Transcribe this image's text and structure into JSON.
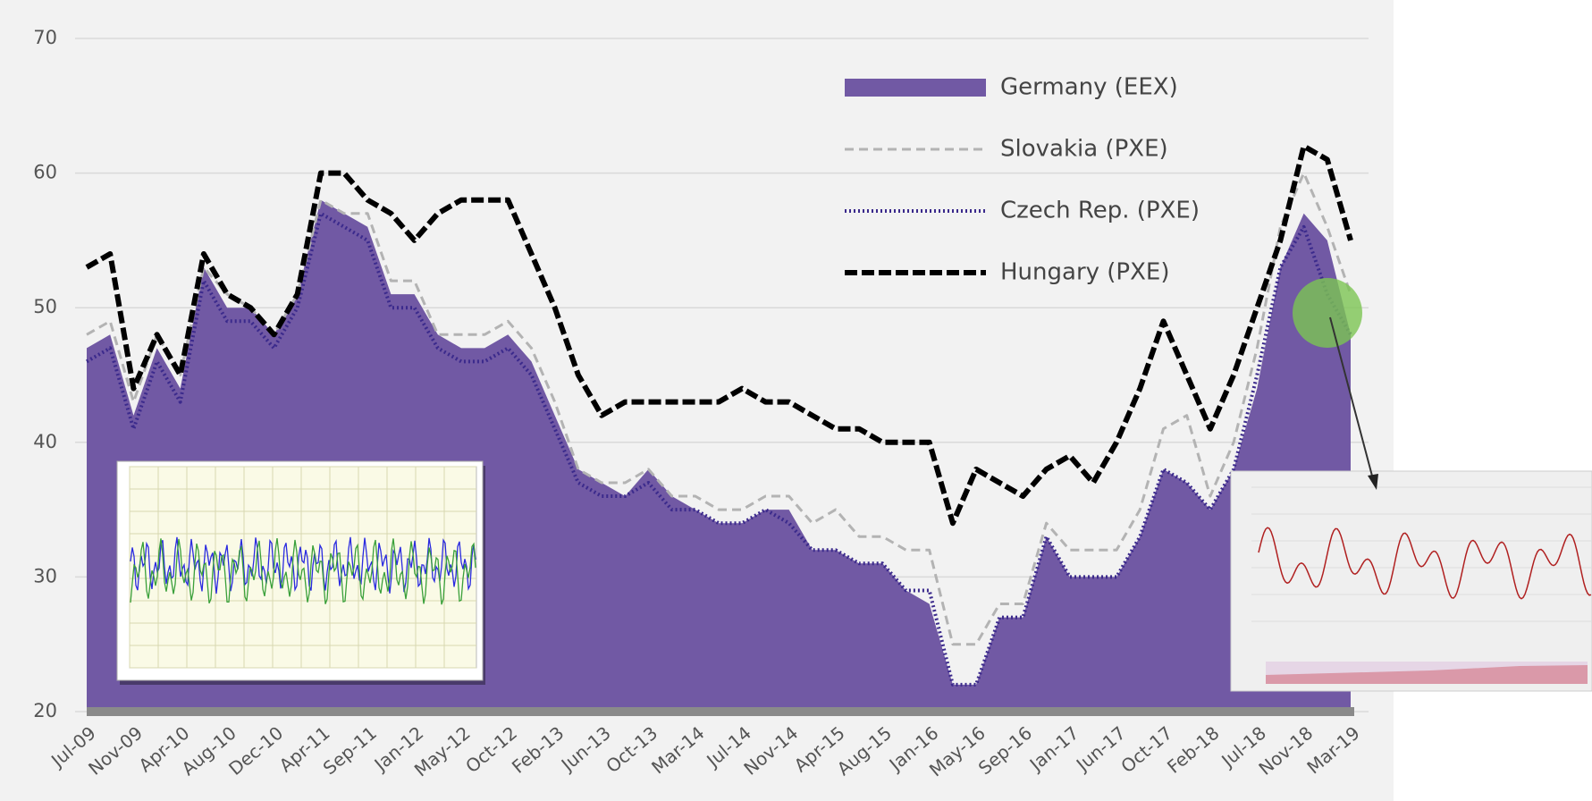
{
  "chart_data": {
    "type": "area-line",
    "categories": [
      "Jul-09",
      null,
      "Nov-09",
      null,
      "Apr-10",
      null,
      "Aug-10",
      null,
      "Dec-10",
      null,
      "Apr-11",
      null,
      "Sep-11",
      null,
      "Jan-12",
      null,
      "May-12",
      null,
      "Oct-12",
      null,
      "Feb-13",
      null,
      "Jun-13",
      null,
      "Oct-13",
      null,
      "Mar-14",
      null,
      "Jul-14",
      null,
      "Nov-14",
      null,
      "Apr-15",
      null,
      "Aug-15",
      null,
      "Jan-16",
      null,
      "May-16",
      null,
      "Sep-16",
      null,
      "Jan-17",
      null,
      "Jun-17",
      null,
      "Oct-17",
      null,
      "Feb-18",
      null,
      "Jul-18",
      null,
      "Nov-18",
      null,
      "Mar-19"
    ],
    "series": [
      {
        "name": "Germany (EEX)",
        "color": "#7159a4",
        "style": "area",
        "values": [
          47,
          48,
          42,
          47,
          44,
          53,
          50,
          50,
          48,
          51,
          58,
          57,
          56,
          51,
          51,
          48,
          47,
          47,
          48,
          46,
          42,
          38,
          37,
          36,
          38,
          36,
          35,
          34,
          34,
          35,
          35,
          32,
          32,
          31,
          31,
          29,
          28,
          22,
          22,
          27,
          27,
          33,
          30,
          30,
          30,
          33,
          38,
          37,
          35,
          38,
          44,
          53,
          57,
          55,
          48
        ]
      },
      {
        "name": "Slovakia (PXE)",
        "color": "#b3b3b3",
        "style": "dashed",
        "values": [
          48,
          49,
          43,
          48,
          45,
          53,
          51,
          50,
          48,
          51,
          58,
          57,
          57,
          52,
          52,
          48,
          48,
          48,
          49,
          47,
          43,
          38,
          37,
          37,
          38,
          36,
          36,
          35,
          35,
          36,
          36,
          34,
          35,
          33,
          33,
          32,
          32,
          25,
          25,
          28,
          28,
          34,
          32,
          32,
          32,
          35,
          41,
          42,
          36,
          40,
          47,
          56,
          60,
          56,
          51
        ]
      },
      {
        "name": "Czech Rep. (PXE)",
        "color": "#3b2a8c",
        "style": "dotted",
        "values": [
          46,
          47,
          41,
          46,
          43,
          52,
          49,
          49,
          47,
          50,
          57,
          56,
          55,
          50,
          50,
          47,
          46,
          46,
          47,
          45,
          41,
          37,
          36,
          36,
          37,
          35,
          35,
          34,
          34,
          35,
          34,
          32,
          32,
          31,
          31,
          29,
          29,
          22,
          22,
          27,
          27,
          33,
          30,
          30,
          30,
          33,
          38,
          37,
          35,
          38,
          45,
          53,
          56,
          51,
          48
        ]
      },
      {
        "name": "Hungary (PXE)",
        "color": "#000000",
        "style": "dashed-bold",
        "values": [
          53,
          54,
          44,
          48,
          45,
          54,
          51,
          50,
          48,
          51,
          60,
          60,
          58,
          57,
          55,
          57,
          58,
          58,
          58,
          54,
          50,
          45,
          42,
          43,
          43,
          43,
          43,
          43,
          44,
          43,
          43,
          42,
          41,
          41,
          40,
          40,
          40,
          34,
          38,
          37,
          36,
          38,
          39,
          37,
          40,
          44,
          49,
          45,
          41,
          45,
          50,
          55,
          62,
          61,
          55
        ]
      }
    ],
    "ylim": [
      20,
      70
    ],
    "yticks": [
      20,
      30,
      40,
      50,
      60,
      70
    ],
    "grid": true,
    "legend": "top-right"
  }
}
